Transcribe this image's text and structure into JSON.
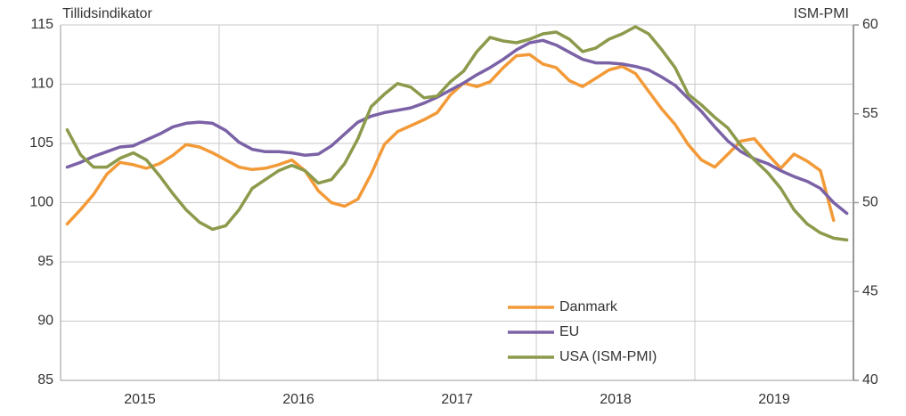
{
  "chart_data": {
    "type": "line",
    "y_label": "Tillidsindikator",
    "y2_label": "ISM-PMI",
    "categories": [
      null,
      null,
      null,
      null,
      null,
      "2015",
      null,
      null,
      null,
      null,
      null,
      null,
      null,
      null,
      null,
      null,
      null,
      "2016",
      null,
      null,
      null,
      null,
      null,
      null,
      null,
      null,
      null,
      null,
      null,
      "2017",
      null,
      null,
      null,
      null,
      null,
      null,
      null,
      null,
      null,
      null,
      null,
      "2018",
      null,
      null,
      null,
      null,
      null,
      null,
      null,
      null,
      null,
      null,
      null,
      "2019",
      null,
      null,
      null,
      null,
      null,
      null
    ],
    "series": [
      {
        "name": "Danmark",
        "color": "#f39a38",
        "values": [
          98.2,
          99.4,
          100.7,
          102.4,
          103.4,
          103.2,
          102.9,
          103.3,
          104.0,
          104.9,
          104.7,
          104.2,
          103.6,
          103.0,
          102.8,
          102.9,
          103.2,
          103.6,
          102.7,
          101.0,
          100.0,
          99.7,
          100.3,
          102.4,
          104.9,
          106.0,
          106.5,
          107.0,
          107.6,
          109.1,
          110.1,
          109.8,
          110.2,
          111.4,
          112.4,
          112.5,
          111.7,
          111.4,
          110.3,
          109.8,
          110.5,
          111.2,
          111.5,
          110.9,
          109.4,
          107.9,
          106.6,
          104.9,
          103.6,
          103.0,
          104.1,
          105.2,
          105.4,
          104.1,
          102.9,
          104.1,
          103.5,
          102.7,
          98.5,
          null
        ]
      },
      {
        "name": "EU",
        "color": "#7b62a6",
        "values": [
          103.0,
          103.4,
          103.9,
          104.3,
          104.7,
          104.8,
          105.3,
          105.8,
          106.4,
          106.7,
          106.8,
          106.7,
          106.1,
          105.1,
          104.5,
          104.3,
          104.3,
          104.2,
          104.0,
          104.1,
          104.8,
          105.8,
          106.8,
          107.3,
          107.6,
          107.8,
          108.0,
          108.4,
          108.9,
          109.5,
          110.1,
          110.8,
          111.4,
          112.1,
          112.9,
          113.5,
          113.7,
          113.3,
          112.7,
          112.1,
          111.8,
          111.8,
          111.7,
          111.5,
          111.2,
          110.6,
          109.9,
          108.8,
          107.7,
          106.4,
          105.2,
          104.3,
          103.7,
          103.3,
          102.7,
          102.2,
          101.8,
          101.2,
          100.0,
          99.1
        ]
      },
      {
        "name": "USA (ISM-PMI)",
        "color": "#8b9a4b",
        "axis": "y2",
        "values": [
          54.1,
          52.7,
          52.0,
          52.0,
          52.5,
          52.8,
          52.4,
          51.5,
          50.5,
          49.6,
          48.9,
          48.5,
          48.7,
          49.6,
          50.8,
          51.3,
          51.8,
          52.1,
          51.8,
          51.1,
          51.3,
          52.2,
          53.6,
          55.4,
          56.1,
          56.7,
          56.5,
          55.9,
          56.0,
          56.8,
          57.4,
          58.5,
          59.3,
          59.1,
          59.0,
          59.2,
          59.5,
          59.6,
          59.2,
          58.5,
          58.7,
          59.2,
          59.5,
          59.9,
          59.5,
          58.6,
          57.6,
          56.1,
          55.5,
          54.8,
          54.2,
          53.2,
          52.4,
          51.7,
          50.8,
          49.6,
          48.8,
          48.3,
          48.0,
          47.9
        ]
      }
    ],
    "ylim": [
      85,
      115
    ],
    "yticks": [
      85,
      90,
      95,
      100,
      105,
      110,
      115
    ],
    "y2lim": [
      40,
      60
    ],
    "y2ticks": [
      40,
      45,
      50,
      55,
      60
    ],
    "grid": true,
    "legend": "lower center"
  }
}
